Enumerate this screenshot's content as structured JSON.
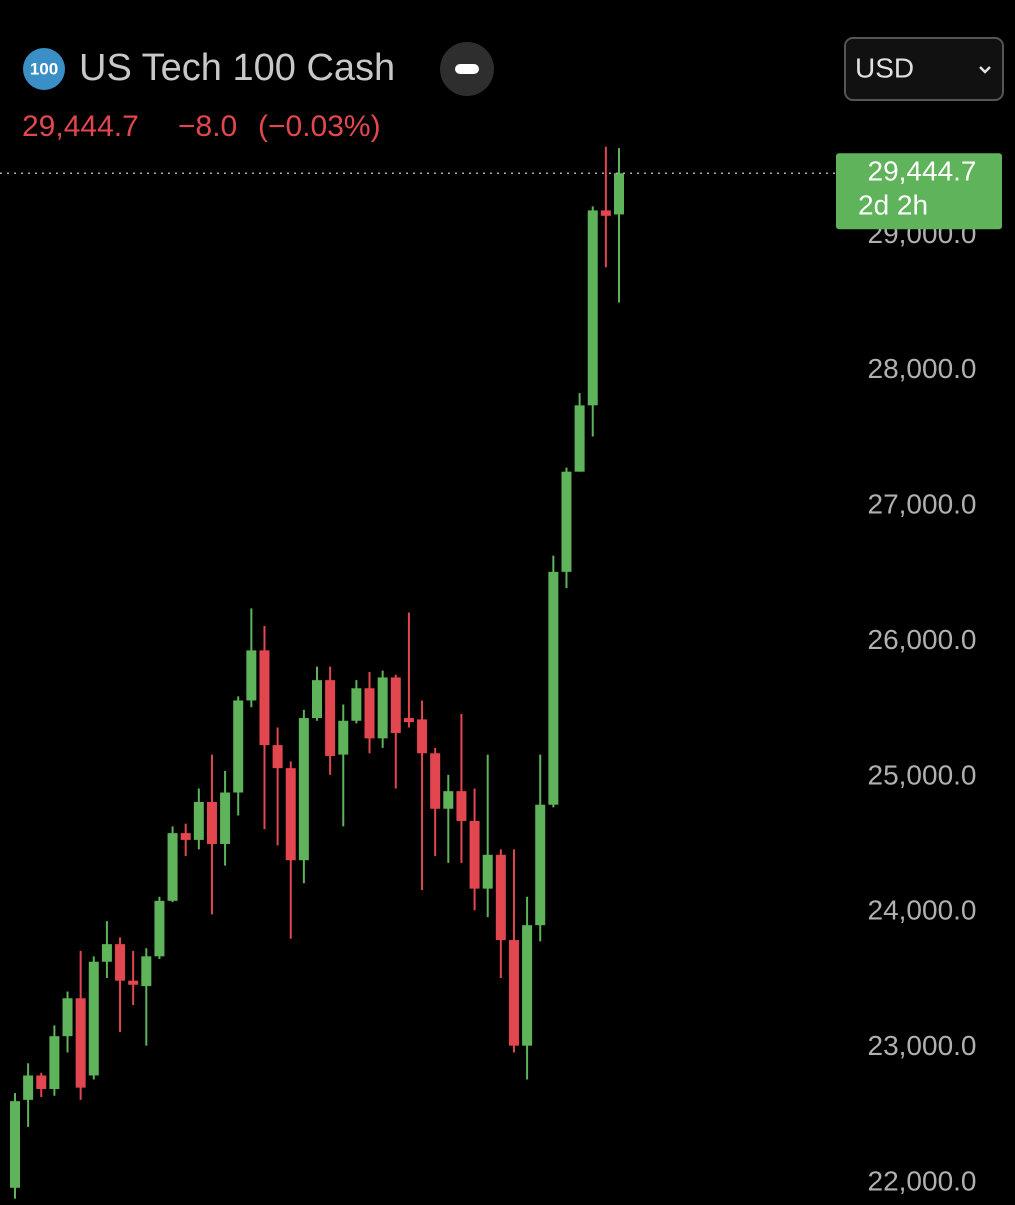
{
  "header": {
    "badge": "100",
    "title": "US Tech 100 Cash",
    "currency": "USD"
  },
  "quote": {
    "price": "29,444.7",
    "change": "−8.0",
    "change_pct": "(−0.03%)"
  },
  "chart_data": {
    "type": "candlestick",
    "open": [
      21950,
      22600,
      22780,
      22680,
      23070,
      23350,
      22780,
      23620,
      23750,
      23480,
      23440,
      23660,
      24070,
      24570,
      24520,
      24800,
      24490,
      24870,
      25550,
      25920,
      25220,
      25050,
      24370,
      25420,
      25700,
      25150,
      25400,
      25640,
      25270,
      25720,
      25420,
      25410,
      25160,
      24750,
      24880,
      24660,
      24160,
      24410,
      23780,
      23000,
      23890,
      24780,
      26500,
      27240,
      27730,
      29170,
      29140
    ],
    "high": [
      22650,
      22870,
      22800,
      23150,
      23400,
      23700,
      23660,
      23920,
      23800,
      23700,
      23720,
      24100,
      24620,
      24640,
      24900,
      25150,
      25030,
      25580,
      26230,
      26100,
      25350,
      25100,
      25480,
      25800,
      25800,
      25520,
      25700,
      25760,
      25770,
      25740,
      26200,
      25550,
      25200,
      25000,
      25450,
      24900,
      25150,
      24450,
      24450,
      24100,
      25150,
      26620,
      27270,
      27820,
      29200,
      29640,
      29630
    ],
    "low": [
      21870,
      22400,
      22620,
      22630,
      22950,
      22600,
      22750,
      23500,
      23100,
      23300,
      23000,
      23640,
      24060,
      24400,
      24450,
      23970,
      24330,
      24700,
      25500,
      24600,
      24480,
      23790,
      24200,
      25400,
      25000,
      24620,
      25380,
      25160,
      25200,
      24900,
      25350,
      24150,
      24400,
      24350,
      24350,
      24000,
      23950,
      23500,
      22950,
      22750,
      23770,
      24760,
      26380,
      27240,
      27500,
      28750,
      28490
    ],
    "close": [
      22590,
      22780,
      22680,
      23070,
      23350,
      22690,
      23620,
      23750,
      23480,
      23450,
      23660,
      24070,
      24570,
      24520,
      24800,
      24490,
      24870,
      25550,
      25920,
      25220,
      25050,
      24370,
      25420,
      25700,
      25140,
      25400,
      25640,
      25270,
      25720,
      25310,
      25390,
      25160,
      24750,
      24880,
      24660,
      24160,
      24410,
      23780,
      23000,
      23890,
      24780,
      26500,
      27240,
      27730,
      29170,
      29130,
      29444.7
    ],
    "up_color": "#5fb35a",
    "down_color": "#e2474f",
    "ylim": [
      21860,
      29690
    ],
    "yticks": [
      {
        "value": 22000,
        "label": "22,000.0"
      },
      {
        "value": 23000,
        "label": "23,000.0"
      },
      {
        "value": 24000,
        "label": "24,000.0"
      },
      {
        "value": 25000,
        "label": "25,000.0"
      },
      {
        "value": 26000,
        "label": "26,000.0"
      },
      {
        "value": 27000,
        "label": "27,000.0"
      },
      {
        "value": 28000,
        "label": "28,000.0"
      },
      {
        "value": 29000,
        "label": "29,000.0"
      }
    ],
    "price_tag": {
      "value": 29444.7,
      "label": "29,444.7",
      "timer": "2d 2h"
    }
  }
}
